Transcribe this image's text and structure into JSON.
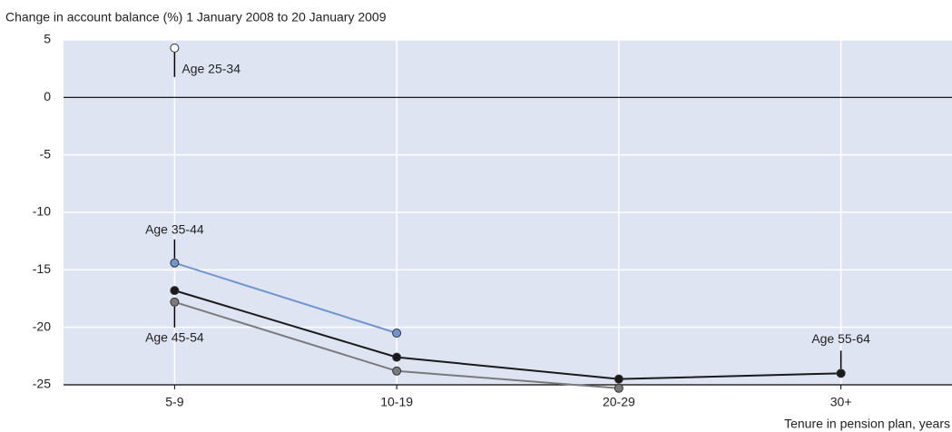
{
  "chart_data": {
    "type": "line",
    "y_label": "Change in account balance (%) 1 January 2008 to 20 January 2009",
    "x_label": "Tenure in pension plan, years",
    "categories": [
      "5-9",
      "10-19",
      "20-29",
      "30+"
    ],
    "series": [
      {
        "name": "Age 25-34",
        "color": "#ffffff",
        "values": [
          4.3,
          null,
          null,
          null
        ]
      },
      {
        "name": "Age 35-44",
        "color": "#6f96cf",
        "values": [
          -14.4,
          -20.5,
          null,
          null
        ]
      },
      {
        "name": "Age 45-54",
        "color": "#7a7a7a",
        "values": [
          -17.8,
          -23.8,
          -25.3,
          null
        ]
      },
      {
        "name": "Age 55-64",
        "color": "#1a1a1a",
        "values": [
          -16.8,
          -22.6,
          -24.5,
          -24.0
        ]
      }
    ],
    "ylim": [
      -25,
      5
    ],
    "yticks": [
      5,
      0,
      -5,
      -10,
      -15,
      -20,
      -25
    ],
    "grid": true
  }
}
